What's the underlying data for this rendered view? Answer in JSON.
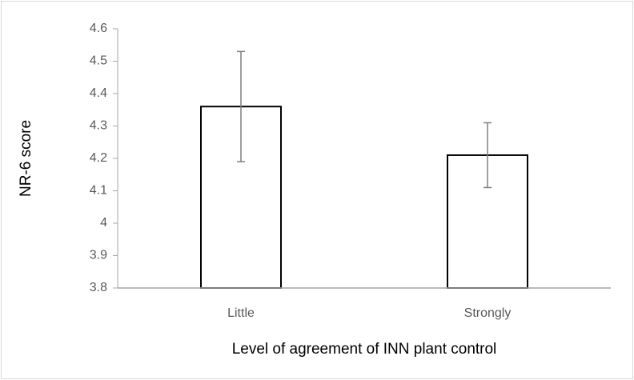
{
  "chart_data": {
    "type": "bar",
    "categories": [
      "Little",
      "Strongly"
    ],
    "values": [
      4.36,
      4.21
    ],
    "errors": [
      0.17,
      0.1
    ],
    "color": "#ffffff",
    "xlabel": "Level of agreement of INN plant control",
    "ylabel": "NR-6 score",
    "ylim": [
      3.8,
      4.6
    ],
    "yticks": [
      3.8,
      3.9,
      4,
      4.1,
      4.2,
      4.3,
      4.4,
      4.5,
      4.6
    ],
    "grid": false
  }
}
